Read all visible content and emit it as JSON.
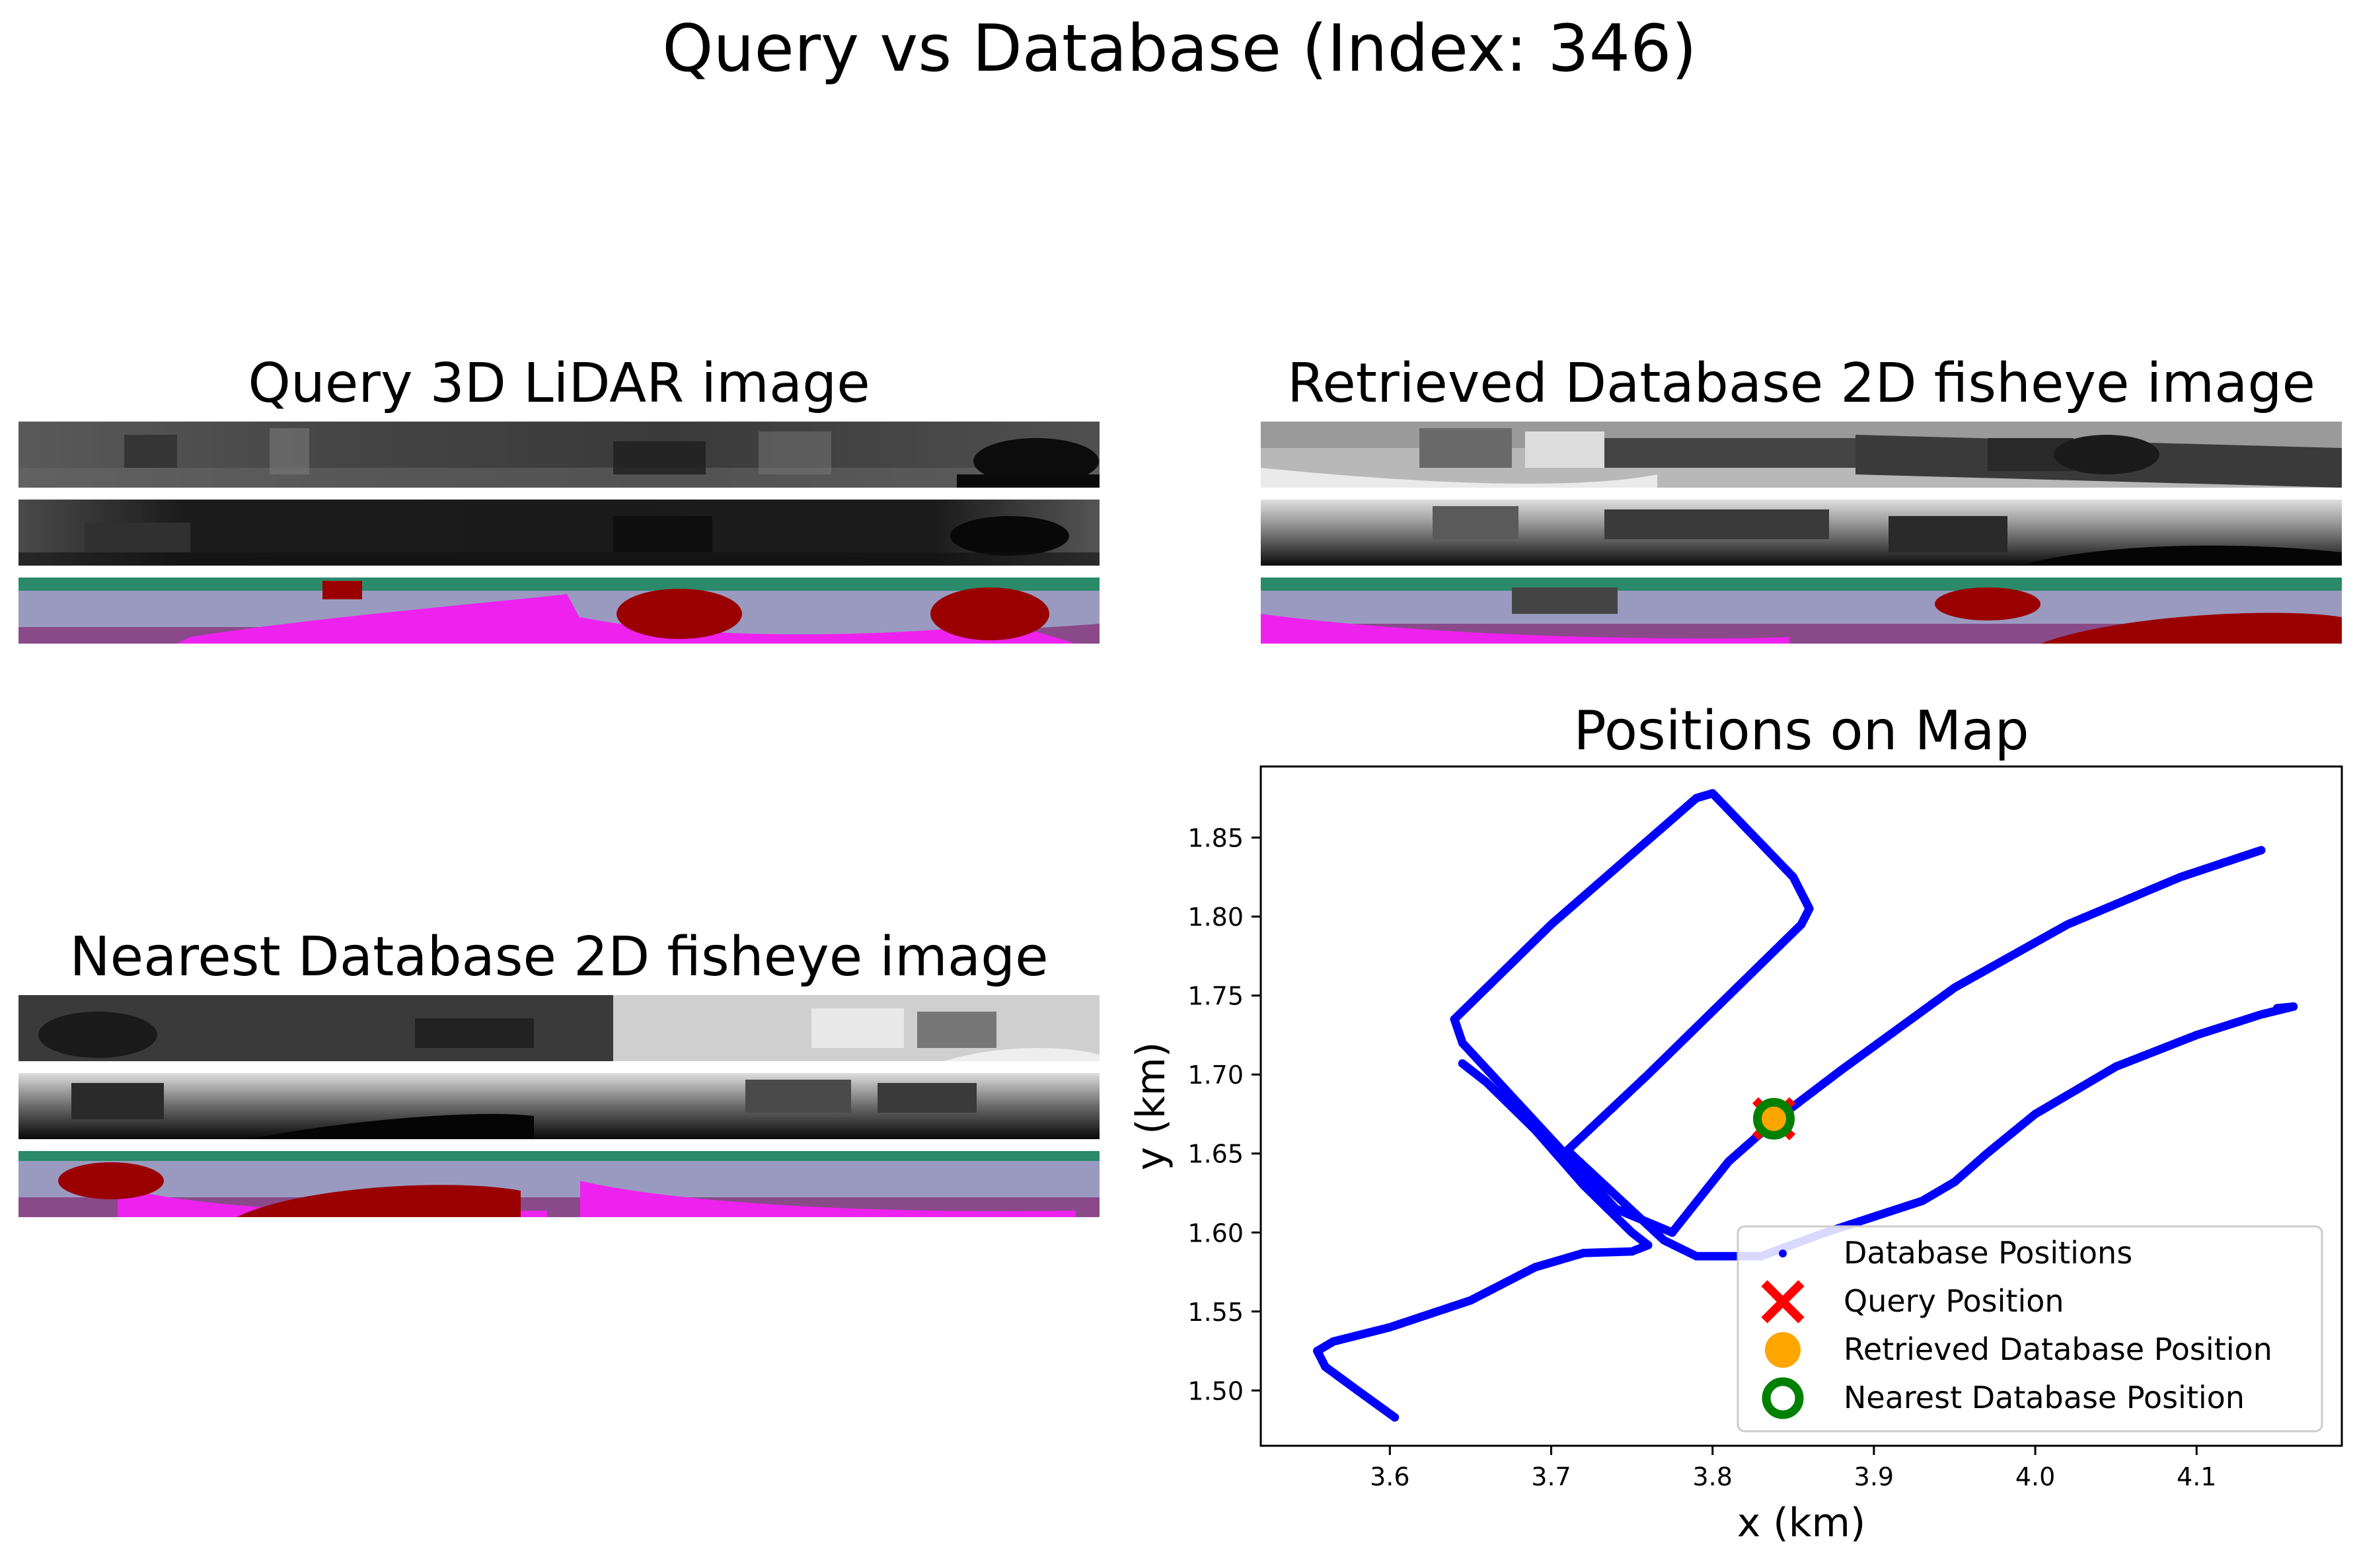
{
  "figure": {
    "title": "Query vs Database (Index: 346)"
  },
  "panels": {
    "query": {
      "title": "Query 3D LiDAR image",
      "rows": [
        "intensity",
        "range",
        "semantic"
      ]
    },
    "retrieved": {
      "title": "Retrieved Database 2D fisheye image",
      "rows": [
        "grayscale",
        "depth",
        "semantic"
      ]
    },
    "nearest": {
      "title": "Nearest Database 2D fisheye image",
      "rows": [
        "grayscale",
        "depth",
        "semantic"
      ]
    }
  },
  "colors": {
    "trajectory": "#0000ff",
    "query_marker": "#ff0000",
    "retrieved_marker": "#ffa500",
    "nearest_marker": "#008000",
    "semantic_road": "#ee22ee",
    "semantic_sidewalk": "#8a4a8a",
    "semantic_building": "#9a9ac0",
    "semantic_vegetation": "#2a8a6a",
    "semantic_car": "#9a0000"
  },
  "chart_data": {
    "type": "scatter",
    "title": "Positions on Map",
    "xlabel": "x (km)",
    "ylabel": "y (km)",
    "xlim": [
      3.52,
      4.19
    ],
    "ylim": [
      1.465,
      1.895
    ],
    "xticks": [
      "3.6",
      "3.7",
      "3.8",
      "3.9",
      "4.0",
      "4.1"
    ],
    "yticks": [
      "1.50",
      "1.55",
      "1.60",
      "1.65",
      "1.70",
      "1.75",
      "1.80",
      "1.85"
    ],
    "grid": false,
    "legend_position": "lower-right",
    "series": [
      {
        "name": "Database Positions",
        "marker": "dot",
        "segments": [
          {
            "x": [
              3.603,
              3.58,
              3.56,
              3.555,
              3.565,
              3.6,
              3.65,
              3.69,
              3.72,
              3.75,
              3.76,
              3.75,
              3.72,
              3.69,
              3.66,
              3.645
            ],
            "y": [
              1.483,
              1.5,
              1.515,
              1.525,
              1.531,
              1.54,
              1.557,
              1.578,
              1.587,
              1.588,
              1.592,
              1.6,
              1.63,
              1.665,
              1.695,
              1.707
            ]
          },
          {
            "x": [
              3.71,
              3.77,
              3.79,
              3.83,
              3.87,
              3.9,
              3.93,
              3.95,
              3.97,
              4.0,
              4.05,
              4.1,
              4.14,
              4.16,
              4.15
            ],
            "y": [
              1.652,
              1.595,
              1.585,
              1.585,
              1.6,
              1.61,
              1.62,
              1.632,
              1.65,
              1.675,
              1.705,
              1.725,
              1.738,
              1.743,
              1.742
            ]
          },
          {
            "x": [
              3.71,
              3.76,
              3.82,
              3.855,
              3.86,
              3.85,
              3.8,
              3.79,
              3.7,
              3.64,
              3.645,
              3.74,
              3.775
            ],
            "y": [
              1.652,
              1.7,
              1.76,
              1.795,
              1.805,
              1.825,
              1.878,
              1.875,
              1.795,
              1.735,
              1.72,
              1.615,
              1.6
            ]
          },
          {
            "x": [
              3.775,
              3.81,
              3.84,
              3.88,
              3.95,
              4.02,
              4.09,
              4.14
            ],
            "y": [
              1.6,
              1.645,
              1.672,
              1.703,
              1.755,
              1.795,
              1.825,
              1.842
            ]
          }
        ]
      },
      {
        "name": "Query Position",
        "marker": "x",
        "x": [
          3.838
        ],
        "y": [
          1.672
        ]
      },
      {
        "name": "Retrieved Database Position",
        "marker": "filled-circle",
        "x": [
          3.838
        ],
        "y": [
          1.672
        ]
      },
      {
        "name": "Nearest Database Position",
        "marker": "open-circle",
        "x": [
          3.838
        ],
        "y": [
          1.672
        ]
      }
    ]
  }
}
